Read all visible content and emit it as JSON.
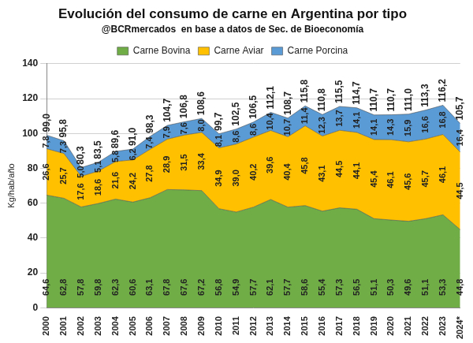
{
  "chart_data": {
    "type": "area",
    "title": "Evolución del consumo de carne en Argentina por tipo",
    "subtitle": "@BCRmercados  en base a datos de Sec. de Bioeconomía",
    "y_label": "Kg/hab/año",
    "categories": [
      "2000",
      "2001",
      "2002",
      "2003",
      "2004",
      "2005",
      "2006",
      "2007",
      "2008",
      "2009",
      "2010",
      "2011",
      "2012",
      "2013",
      "2014",
      "2015",
      "2016",
      "2017",
      "2018",
      "2019",
      "2020",
      "2021",
      "2022",
      "2023",
      "2024*"
    ],
    "series": [
      {
        "name": "Carne Bovina",
        "color": "#70ad47",
        "values": [
          64.6,
          62.8,
          57.8,
          59.8,
          62.3,
          60.6,
          63.1,
          67.8,
          67.6,
          67.2,
          56.8,
          54.9,
          57.7,
          62.1,
          57.7,
          58.6,
          55.4,
          57.3,
          56.5,
          51.1,
          50.3,
          49.6,
          51.1,
          53.3,
          44.8
        ],
        "value_labels": [
          "64,6",
          "62,8",
          "57,8",
          "59,8",
          "62,3",
          "60,6",
          "63,1",
          "67,8",
          "67,6",
          "67,2",
          "56,8",
          "54,9",
          "57,7",
          "62,1",
          "57,7",
          "58,6",
          "55,4",
          "57,3",
          "56,5",
          "51,1",
          "50,3",
          "49,6",
          "51,1",
          "53,3",
          "44,8"
        ]
      },
      {
        "name": "Carne Aviar",
        "color": "#ffc000",
        "values": [
          26.6,
          25.7,
          17.6,
          18.6,
          21.6,
          24.2,
          27.8,
          28.9,
          31.5,
          33.4,
          34.9,
          39.0,
          40.2,
          39.6,
          40.4,
          45.8,
          43.1,
          44.5,
          44.1,
          45.4,
          46.1,
          45.6,
          45.7,
          46.1,
          44.5
        ],
        "value_labels": [
          "26,6",
          "25,7",
          "17,6",
          "18,6",
          "21,6",
          "24,2",
          "27,8",
          "28,9",
          "31,5",
          "33,4",
          "34,9",
          "39,0",
          "40,2",
          "39,6",
          "40,4",
          "45,8",
          "43,1",
          "44,5",
          "44,1",
          "45,4",
          "46,1",
          "45,6",
          "45,7",
          "46,1",
          "44,5"
        ]
      },
      {
        "name": "Carne Porcina",
        "color": "#5b9bd5",
        "values": [
          7.8,
          7.3,
          5.0,
          5.1,
          5.8,
          6.2,
          7.4,
          7.9,
          7.6,
          8.0,
          8.1,
          8.6,
          8.6,
          10.4,
          10.7,
          11.4,
          12.3,
          13.7,
          14.1,
          14.1,
          14.3,
          15.9,
          16.6,
          16.8,
          16.4
        ],
        "value_labels": [
          "7,8",
          "7,3",
          "5,0",
          "5,1",
          "5,8",
          "6,2",
          "7,4",
          "7,9",
          "7,6",
          "8,0",
          "8,1",
          "8,6",
          "8,6",
          "10,4",
          "10,7",
          "11,4",
          "12,3",
          "13,7",
          "14,1",
          "14,1",
          "14,3",
          "15,9",
          "16,6",
          "16,8",
          "16,4"
        ]
      }
    ],
    "totals": {
      "values": [
        99.0,
        95.8,
        80.3,
        83.5,
        89.6,
        91.0,
        98.3,
        104.7,
        106.8,
        108.6,
        99.7,
        102.5,
        106.5,
        112.1,
        108.7,
        115.8,
        110.8,
        115.5,
        114.7,
        110.7,
        110.7,
        111.0,
        113.3,
        116.2,
        105.7
      ],
      "value_labels": [
        "99,0",
        "95,8",
        "80,3",
        "83,5",
        "89,6",
        "91,0",
        "98,3",
        "104,7",
        "106,8",
        "108,6",
        "99,7",
        "102,5",
        "106,5",
        "112,1",
        "108,7",
        "115,8",
        "110,8",
        "115,5",
        "114,7",
        "110,7",
        "110,7",
        "111,0",
        "113,3",
        "116,2",
        "105,7"
      ]
    },
    "ylim": [
      0,
      140
    ],
    "yticks": [
      0,
      20,
      40,
      60,
      80,
      100,
      120,
      140
    ],
    "stacked": true,
    "data_labels": true,
    "grid": true,
    "legend": "top"
  }
}
